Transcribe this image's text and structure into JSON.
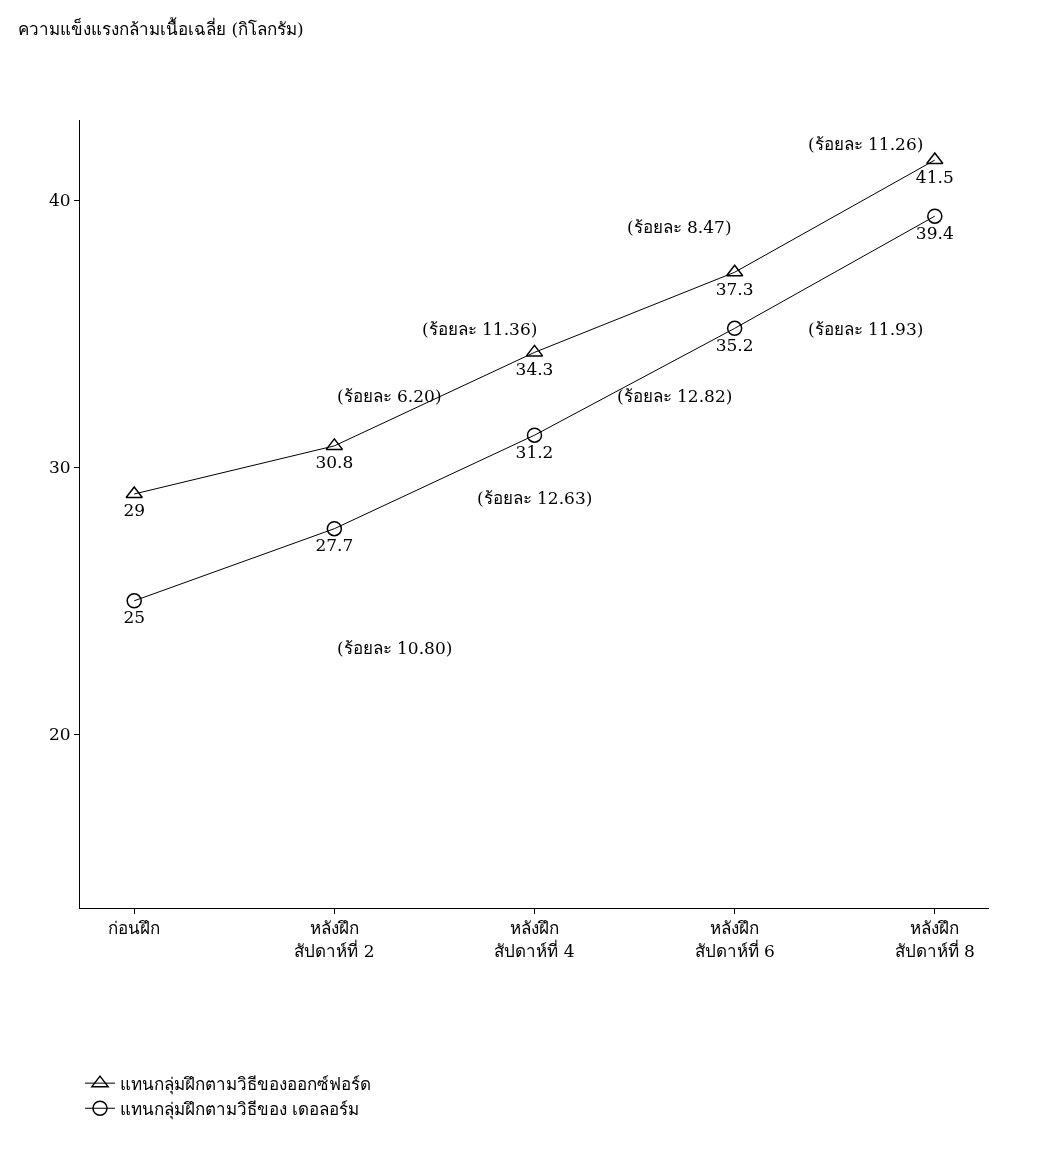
{
  "chart_data": {
    "type": "line",
    "ylabel": "ความแข็งแรงกล้ามเนื้อเฉลี่ย (กิโลกรัม)",
    "categories": [
      "ก่อนฝึก",
      "หลังฝึก\nสัปดาห์ที่ 2",
      "หลังฝึก\nสัปดาห์ที่ 4",
      "หลังฝึก\nสัปดาห์ที่ 6",
      "หลังฝึก\nสัปดาห์ที่ 8"
    ],
    "series": [
      {
        "name": "แทนกลุ่มฝึกตามวิธีของออกซ์ฟอร์ด",
        "color": "#000000",
        "marker": "triangle",
        "values": [
          29,
          30.8,
          34.3,
          37.3,
          41.5
        ]
      },
      {
        "name": "แทนกลุ่มฝึกตามวิธีของ เดอลอร์ม",
        "color": "#000000",
        "marker": "circle",
        "values": [
          25,
          27.7,
          31.2,
          35.2,
          39.4
        ]
      }
    ],
    "data_labels": true,
    "annotations": [
      "(ร้อยละ 10.80)",
      "(ร้อยละ 6.20)",
      "(ร้อยละ 11.36)",
      "(ร้อยละ 12.63)",
      "(ร้อยละ 8.47)",
      "(ร้อยละ 12.82)",
      "(ร้อยละ 11.93)",
      "(ร้อยละ 11.26)"
    ],
    "ylim": [
      13.5,
      43
    ],
    "yticks": [
      20,
      30,
      40
    ],
    "grid": false,
    "legend": "bottom",
    "line_style": "solid"
  }
}
